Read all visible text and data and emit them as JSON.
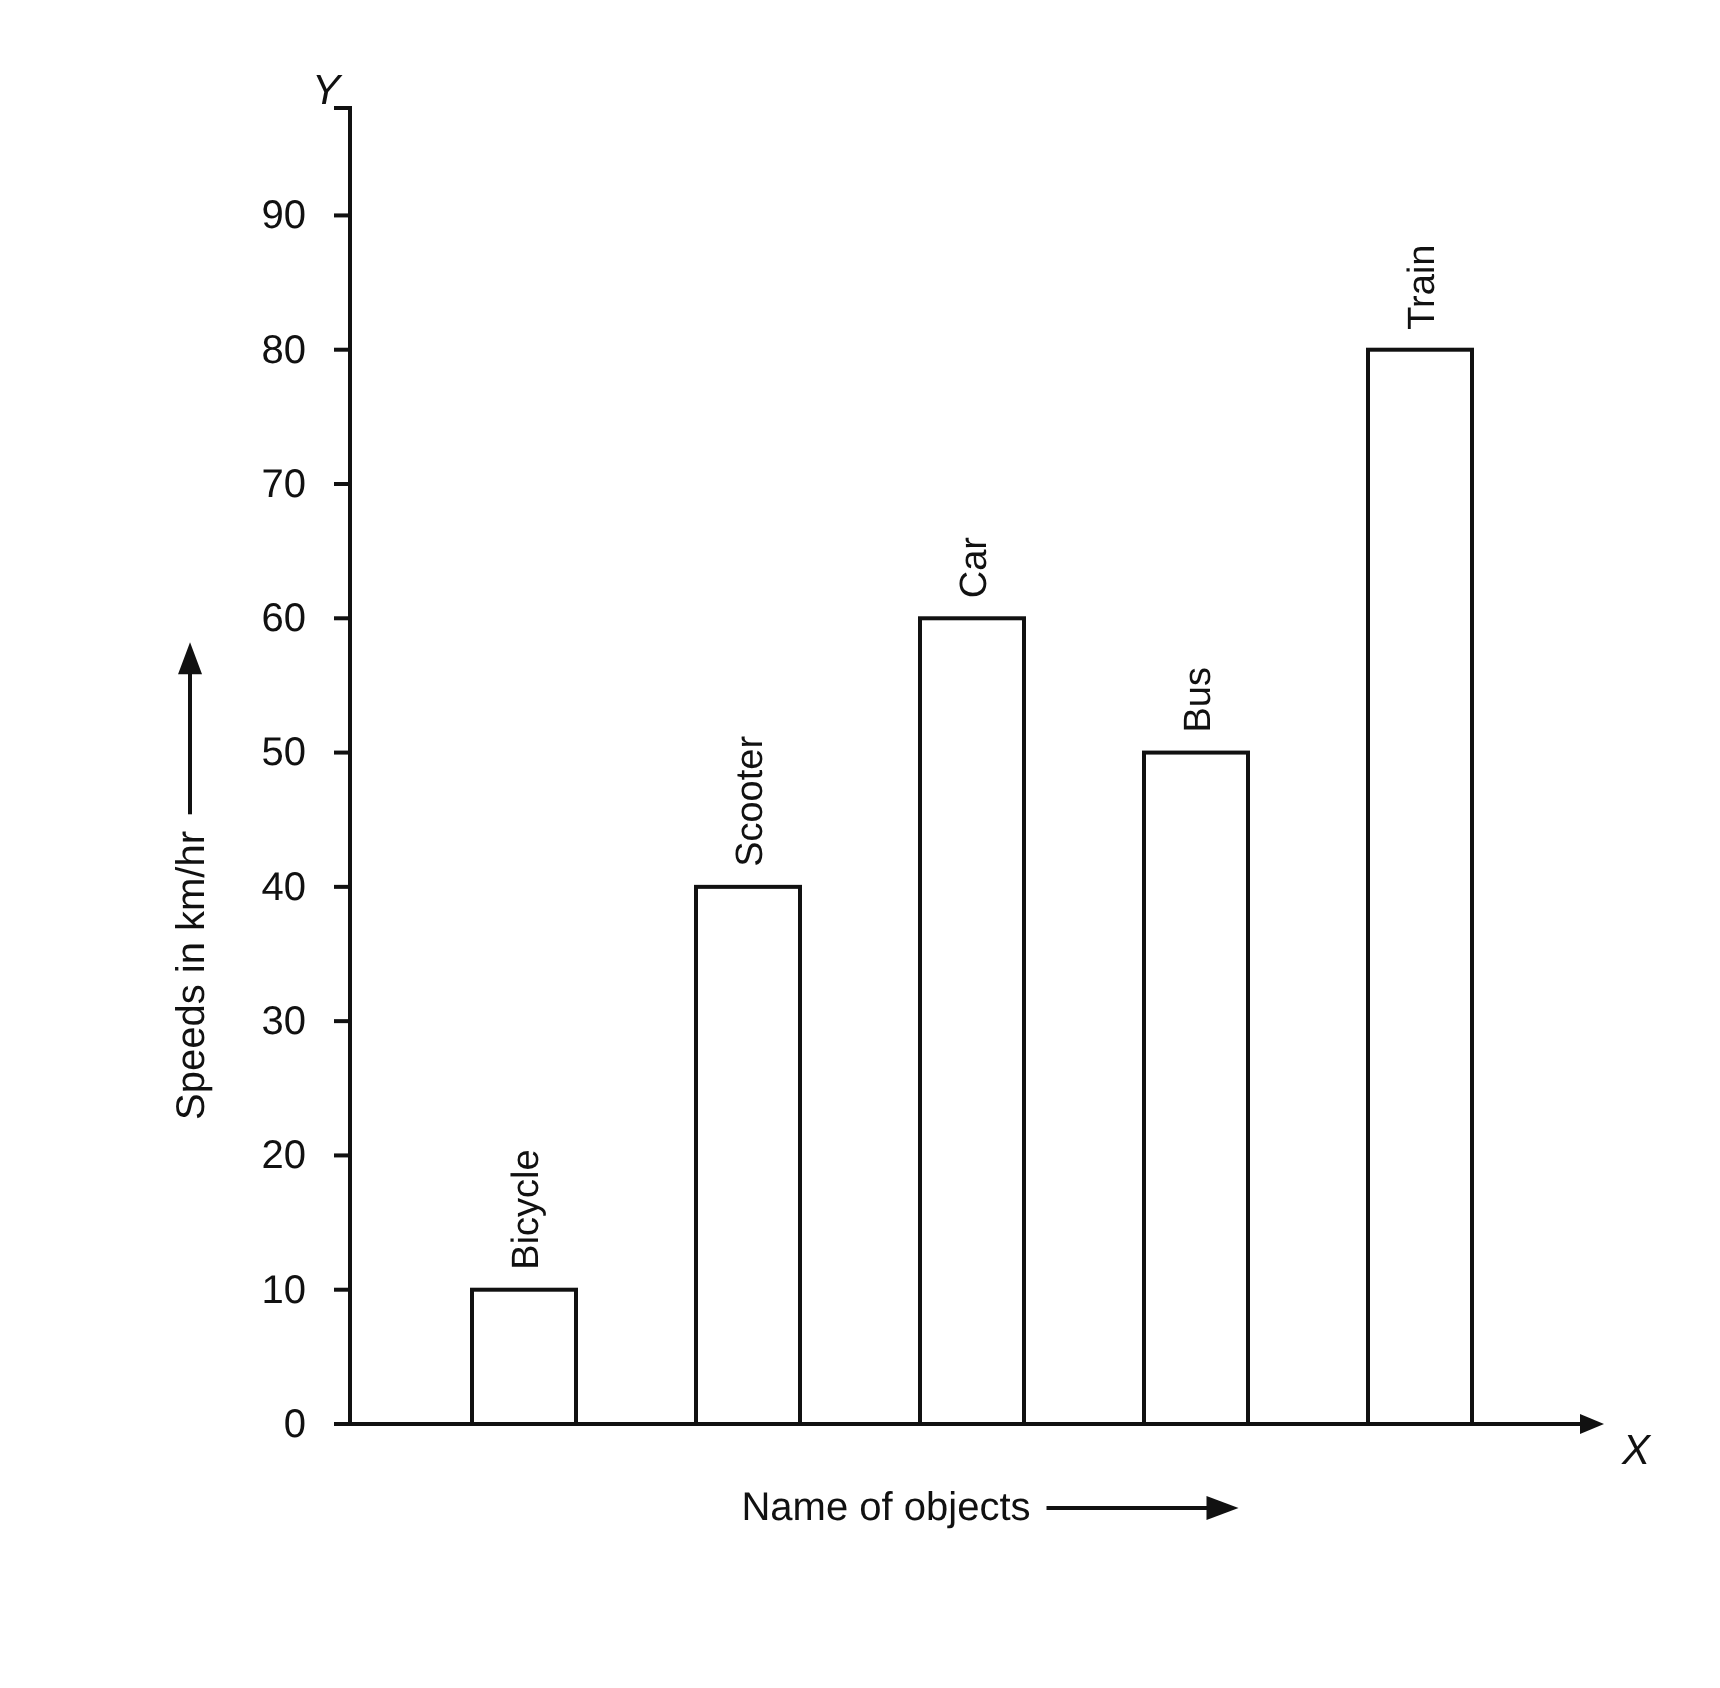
{
  "chart_data": {
    "type": "bar",
    "xlabel": "Name of objects",
    "ylabel": "Speeds in km/hr",
    "categories": [
      "Bicycle",
      "Scooter",
      "Car",
      "Bus",
      "Train"
    ],
    "values": [
      10,
      40,
      60,
      50,
      80
    ],
    "color": "#ffffff",
    "ylim": [
      0,
      98
    ],
    "yticks": [
      0,
      10,
      20,
      30,
      40,
      50,
      60,
      70,
      80,
      90
    ],
    "grid": false,
    "annotations": [
      "Y",
      "X"
    ]
  }
}
